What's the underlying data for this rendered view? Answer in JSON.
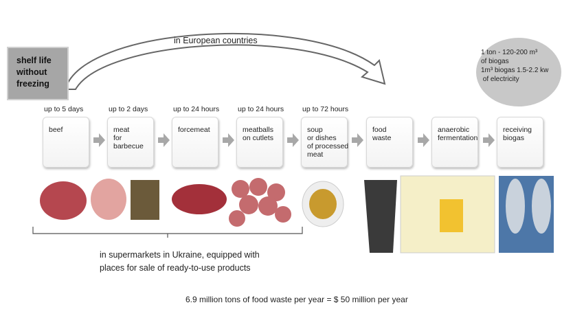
{
  "shelf_box": {
    "lines": [
      "shelf life",
      "without",
      "freezing"
    ]
  },
  "arc_label": "in European countries",
  "biogas_note": {
    "lines": [
      "1 ton - 120-200 m³",
      "of biogas",
      "1m³ biogas 1.5-2.2 kw",
      " of electricity"
    ]
  },
  "steps": [
    {
      "time": "up to 5 days",
      "lines": [
        "beef"
      ]
    },
    {
      "time": "up to 2 days",
      "lines": [
        "meat",
        "for",
        "barbecue"
      ]
    },
    {
      "time": "up to 24 hours",
      "lines": [
        "forcemeat"
      ]
    },
    {
      "time": "up to 24 hours",
      "lines": [
        "meatballs",
        "on cutlets"
      ]
    },
    {
      "time": "up to 72 hours",
      "lines": [
        "soup",
        "or dishes",
        "of processed",
        "meat"
      ]
    },
    {
      "lines": [
        "food",
        "waste"
      ]
    },
    {
      "lines": [
        "anaerobic",
        "fermentation"
      ]
    },
    {
      "lines": [
        "receiving",
        "biogas"
      ]
    }
  ],
  "bracket_label": {
    "lines": [
      "in supermarkets in Ukraine, equipped with",
      "places for sale of ready-to-use products"
    ]
  },
  "footer": "6.9 million tons of food waste per year = $ 50 million per year"
}
